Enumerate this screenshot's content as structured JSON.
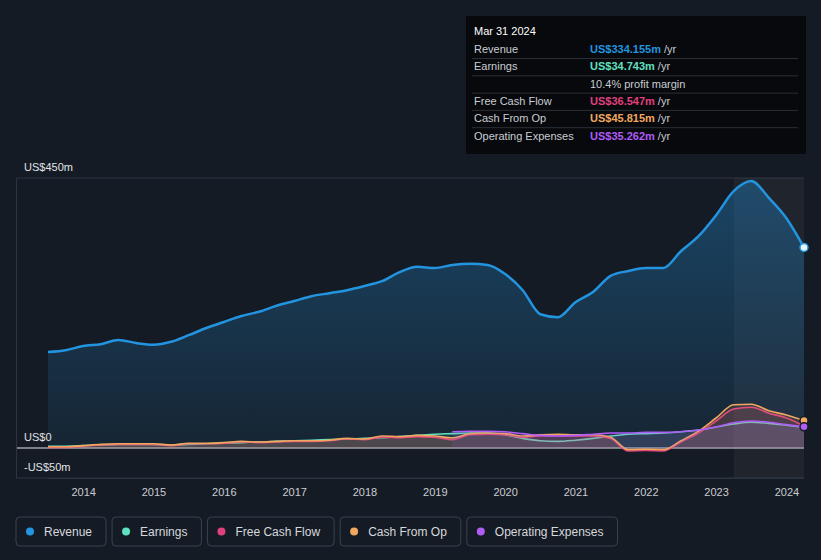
{
  "chart_data": {
    "type": "area",
    "x": [
      2013.5,
      2013.75,
      2014.0,
      2014.25,
      2014.5,
      2014.75,
      2015.0,
      2015.25,
      2015.5,
      2015.75,
      2016.0,
      2016.25,
      2016.5,
      2016.75,
      2017.0,
      2017.25,
      2017.5,
      2017.75,
      2018.0,
      2018.25,
      2018.5,
      2018.75,
      2019.0,
      2019.25,
      2019.5,
      2019.75,
      2020.0,
      2020.25,
      2020.5,
      2020.75,
      2021.0,
      2021.25,
      2021.5,
      2021.75,
      2022.0,
      2022.25,
      2022.5,
      2022.75,
      2023.0,
      2023.25,
      2023.5,
      2023.75,
      2024.0,
      2024.25
    ],
    "series": [
      {
        "name": "Revenue",
        "color": "#2394df",
        "marker": "end-dot",
        "values": [
          160,
          163,
          170,
          173,
          180,
          175,
          172,
          177,
          188,
          200,
          210,
          220,
          227,
          237,
          245,
          253,
          258,
          263,
          270,
          278,
          293,
          302,
          300,
          305,
          307,
          305,
          290,
          263,
          223,
          218,
          243,
          260,
          287,
          295,
          300,
          300,
          328,
          353,
          388,
          428,
          445,
          417,
          383,
          334.155
        ]
      },
      {
        "name": "Earnings",
        "color": "#5fe0c0",
        "values": [
          3,
          3,
          4,
          5,
          6,
          6,
          6,
          5,
          6,
          7,
          8,
          9,
          10,
          11,
          12,
          13,
          14,
          15,
          16,
          17,
          19,
          21,
          23,
          24,
          25,
          25,
          22,
          16,
          12,
          11,
          13,
          16,
          20,
          23,
          24,
          25,
          27,
          30,
          35,
          40,
          43,
          41,
          38,
          34.743
        ]
      },
      {
        "name": "Free Cash Flow",
        "color": "#e0407d",
        "values": [
          1,
          1,
          3,
          5,
          6,
          6,
          6,
          4,
          7,
          7,
          8,
          10,
          9,
          10,
          11,
          11,
          12,
          15,
          14,
          18,
          17,
          19,
          18,
          14,
          22,
          23,
          22,
          18,
          20,
          21,
          20,
          20,
          16,
          -5,
          -4,
          -5,
          10,
          25,
          45,
          65,
          68,
          58,
          50,
          36.547
        ]
      },
      {
        "name": "Cash From Op",
        "color": "#f0a860",
        "marker": "end-dot",
        "values": [
          2,
          2,
          4,
          6,
          7,
          7,
          7,
          5,
          8,
          8,
          9,
          11,
          10,
          11,
          12,
          12,
          13,
          16,
          15,
          20,
          19,
          21,
          20,
          17,
          24,
          25,
          24,
          20,
          22,
          23,
          22,
          22,
          18,
          -3,
          -2,
          -3,
          12,
          28,
          50,
          72,
          73,
          62,
          55,
          45.815
        ]
      },
      {
        "name": "Operating Expenses",
        "color": "#b05cf7",
        "marker": "end-dot",
        "values": [
          null,
          null,
          null,
          null,
          null,
          null,
          null,
          null,
          null,
          null,
          null,
          null,
          null,
          null,
          null,
          null,
          null,
          null,
          null,
          null,
          null,
          null,
          null,
          27,
          28,
          28,
          27,
          24,
          21,
          20,
          21,
          23,
          25,
          25,
          26,
          26,
          27,
          30,
          35,
          42,
          45,
          43,
          39,
          35.262
        ]
      }
    ],
    "xlim": [
      2013.5,
      2024.25
    ],
    "xticks": [
      2014,
      2015,
      2016,
      2017,
      2018,
      2019,
      2020,
      2021,
      2022,
      2023,
      2024
    ],
    "ylim": [
      -50,
      450
    ],
    "yticks": [
      {
        "value": -50,
        "label": "-US$50m"
      },
      {
        "value": 0,
        "label": "US$0"
      },
      {
        "value": 450,
        "label": "US$450m"
      }
    ],
    "grid": true,
    "legend": "bottom",
    "tooltip": {
      "date": "Mar 31 2024",
      "rows": [
        {
          "label": "Revenue",
          "value": "US$334.155m",
          "unit": "/yr"
        },
        {
          "label": "Earnings",
          "value": "US$34.743m",
          "unit": "/yr"
        },
        {
          "label": "Free Cash Flow",
          "value": "US$36.547m",
          "unit": "/yr"
        },
        {
          "label": "Cash From Op",
          "value": "US$45.815m",
          "unit": "/yr"
        },
        {
          "label": "Operating Expenses",
          "value": "US$35.262m",
          "unit": "/yr"
        }
      ],
      "profit_margin": "10.4% profit margin"
    }
  }
}
